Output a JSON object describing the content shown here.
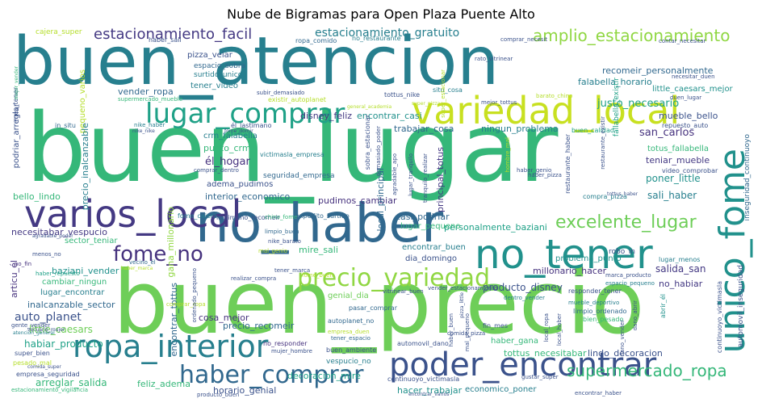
{
  "title": "Nube de Bigramas para Open Plaza Puente Alto",
  "words": {
    "buen_lugar": "buen_lugar",
    "buen_atencion": "buen_atencion",
    "buen_precio": "buen_precio",
    "no_haber": "no_haber",
    "variedad_local": "variedad_local",
    "varios_local": "varios_local",
    "poder_encontrar": "poder_encontrar",
    "ropa_interior": "ropa_interior",
    "unico_fome": "unico_fome",
    "no_tener": "no_tener",
    "lugar_comprar": "lugar_comprar",
    "precio_variedad": "precio_variedad",
    "haber_comprar": "haber_comprar",
    "excelente_lugar": "excelente_lugar",
    "fome_no": "fome_no",
    "amplio_estacionamiento": "amplio_estacionamiento",
    "estacionamiento_facil": "estacionamiento_facil",
    "supermercado_ropa": "supermercado_ropa",
    "estacionamiento_gratuito": "estacionamiento_gratuito",
    "auto_planet": "auto_planet",
    "justo_necesario": "justo_necesario",
    "recomeir_personalmente": "recomeir_personalmente",
    "falabella_horario": "falabella_horario",
    "little_caesars_mejor": "little_caesars_mejor",
    "san_carlos": "san_carlos",
    "totus_fallabella": "totus_fallabella",
    "teniar_mueble": "teniar_mueble",
    "poner_little": "poner_little",
    "sali_haber": "sali_haber",
    "mueble_bello": "mueble_bello",
    "personalmente_baziani": "personalmente_baziani",
    "casi_podriar": "casi_podriar",
    "lugar_pequeno": "lugar_pequeno",
    "encontrar_buen": "encontrar_buen",
    "dia_domingo": "dia_domingo",
    "problema_punto": "problema_punto",
    "millonario_hacer": "millonario_hacer",
    "salida_san": "salida_san",
    "no_habiar": "no_habiar",
    "producto_disney": "producto_disney",
    "precio_recomeir": "precio_recomeir",
    "cosa_mejor": "cosa_mejor",
    "genial_dia": "genial_dia",
    "tottus_necesitabar": "tottus_necesitabar",
    "lindo_decoracion": "lindo_decoracion",
    "haber_gana": "haber_gana",
    "decoracion_mire": "decoracion_mire",
    "hacer_trabajar": "hacer_trabajar",
    "economico_poner": "economico_poner",
    "horario_genial": "horario_genial",
    "feliz_adema": "feliz_adema",
    "arreglar_salida": "arreglar_salida",
    "habiar_producto": "habiar_producto",
    "little_caesars": "little_caesars",
    "inalcanzable_sector": "inalcanzable_sector",
    "lugar_encontrar": "lugar_encontrar",
    "cambiar_ningun": "cambiar_ningun",
    "baziani_vender": "baziani_vender",
    "sector_teniar": "sector_teniar",
    "necesitabar_vespucio": "necesitabar_vespucio",
    "bello_lindo": "bello_lindo",
    "el_hogar": "él_hogar",
    "crm_falabella": "crm_falabella",
    "punto_crm": "punto_crm",
    "adema_pudimos": "adema_pudimos",
    "interior_economico": "interior_economico",
    "pudimos_cambiar": "pudimos_cambiar",
    "mire_sali": "mire_sali",
    "vender_ropa": "vender_ropa",
    "disney_feliz": "disney_feliz",
    "encontrar_casi": "encontrar_casi",
    "trabajar_cosa": "trabajar_cosa",
    "ningun_problema": "ningun_problema",
    "podriar_arreglar": "podriar_arreglar",
    "tener_video": "tener_video",
    "pizza_veiar": "pizza_veiar",
    "espacio_sobra": "espacio_sobra",
    "surtido_unico": "surtido_unico",
    "cajera_super": "cajera_super",
    "ropa_comido": "ropa_comido",
    "no_restaurante": "no_restaurante",
    "pequeno_varios": "pequeno_varios",
    "gana_millonario": "gana_millonario",
    "precio_inalcanzable": "precio_inalcanzable",
    "articu_el": "articu_él",
    "encontrar_tottus": "encontrar_tottus",
    "principal_totus": "principal_totus",
    "local_principal": "local_principal",
    "fallabella_existir": "fallabella_existir",
    "video_comprobar": "video_comprobar",
    "repuesto_auto": "repuesto_auto",
    "compra_pizza": "compra_pizza",
    "tottus_nike": "tottus_nike",
    "situ_cosa": "situ_cosa",
    "super_bien": "super_bien",
    "empresa_seguridad": "empresa_seguridad",
    "estacionamiento_vigilancia": "estacionamiento_vigilancia",
    "pesado_mal": "pesado_mal",
    "no_fin": "no_fin",
    "menos_no": "menos_no",
    "haber_repuesto": "haber_repuesto",
    "vecino_el": "vecino_él",
    "mal_genio": "mal_genio",
    "limpio_buen": "limpio_buen",
    "robo_in": "robo_in",
    "lugar_menos": "lugar_menos",
    "responder_tener": "responder_tener",
    "dentro_vender": "dentro_vender",
    "no_responder": "no_responder",
    "buen_ambiente": "buen_ambiente",
    "automovil_dano": "automovil_dano",
    "vespucio_no": "vespucio_no",
    "autoplanet_no": "autoplanet_no",
    "pasar_comprar": "pasar_comprar",
    "empresa_duen": "empresa_duen",
    "tener_espacio": "tener_espacio",
    "fin_mes": "fin_mes",
    "bien_pesado": "bien_pesado",
    "dano_abrir": "dano_abrir",
    "limpio_ordenado": "limpio_ordenado",
    "mueble_deportivo": "mueble_deportivo",
    "seguridad_empresa": "seguridad_empresa",
    "victimasla_empresa": "victimasla_empresa",
    "expedito_surtido": "expedito_surtido",
    "lastimano_recomeir": "lastimano_recomeir",
    "fome_cajera": "fome_cajera",
    "comprar_dentro": "comprar_dentro",
    "el_lastimano": "él_lastimano",
    "supermercado_mueble": "supermercado_mueble",
    "existir_autoplanet": "existir_autoplanet",
    "nike_haber": "nike_haber",
    "subir_demasiado": "subir_demasiado",
    "haber_sali": "haber_sali",
    "buen_calidad": "buen_calidad",
    "comprar_necesit": "comprar_necesit",
    "contar_necesitar": "contar_necesitar",
    "inseguridad_continuoyo": "inseguridad_continuoyo",
    "restaurante_haber": "restaurante_haber",
    "duen_lugar": "duen_lugar",
    "continuoyo_victimasla": "continuoyo_victimasla",
    "automovil_inseguridad": "automovil_inseguridad",
    "in_situ": "in_situ",
    "mes_tener": "mes_tener",
    "necesitar_duen": "necesitar_duen",
    "gustar_super": "gustar_super",
    "abrir_el": "abrir_él",
    "encontrar_haber": "encontrar_haber",
    "comida_pizza": "comida_pizza",
    "producto_buen": "producto_buen",
    "atencion_general": "atencion_general",
    "agradable_poder": "agradable_poder",
    "gente_vender": "gente_vender",
    "haber_genio": "haber_genio",
    "restaurante_existir": "restaurante_existir",
    "vender_estacionamiento": "vender_estacionamiento",
    "comprar_ropa": "comprar_ropa",
    "dano_vender": "dano_vender",
    "buen_atencion_small": "buen_atencion",
    "super_estacionar": "super_estacionar",
    "sobra_estacionar": "sobra_estacionar",
    "mejor_tottus": "mejor_tottus",
    "barato_chino": "barato_chino",
    "nike_barato": "nike_barato",
    "chino_fome": "chino_fome",
    "haber_marca": "haber_marca",
    "tener_marca": "tener_marca",
    "marca_producto": "marca_producto",
    "espacio_pequeno": "espacio_pequeno",
    "realizar_compra": "realizar_compra",
    "fome_domir": "fome_domir",
    "nike_nike": "nike_nike",
    "rato_vitrinear": "rato_vitrinear",
    "mejor_vender": "mejor_vender",
    "haber_pizza": "haber_pizza",
    "general_academia": "general_academia",
    "pizza_little": "pizza_little",
    "fome_buen": "fome_buen",
    "demasiado_poder": "demasiado_poder",
    "local_haber": "local_haber",
    "super_pizza": "super_pizza",
    "local_ropa": "local_ropa",
    "ordenado_pequeno": "ordenado_pequeno",
    "vitrinear_buen": "vitrinear_buen",
    "vecuario_mujer": "vecuario_mujer",
    "comida_super": "comida_super",
    "mujer_hombre": "mujer_hombre",
    "sobra_estacionar2": "sobra_estacionar",
    "tranquilo_realizar": "tranquilo_realizar",
    "lugar_tranquilo": "lugar_tranquilo",
    "tottus_haber": "tottus_haber",
    "hombre_mal": "hombre_mal",
    "encontrar_varios": "encontrar_varios",
    "agradable_apo": "agradable_apo",
    "mal_pequeno": "mal_pequeno",
    "haber_buen": "haber_buen"
  },
  "colors": {
    "dark_purple": "#46327e",
    "purple": "#443983",
    "dark_blue": "#31688e",
    "blue": "#3b528b",
    "teal": "#277f8e",
    "teal2": "#21918c",
    "green": "#1fa187",
    "mint": "#35b779",
    "lime": "#6ece58",
    "lime2": "#90d743",
    "yellow": "#b5de2b",
    "yellow2": "#c8e020"
  }
}
